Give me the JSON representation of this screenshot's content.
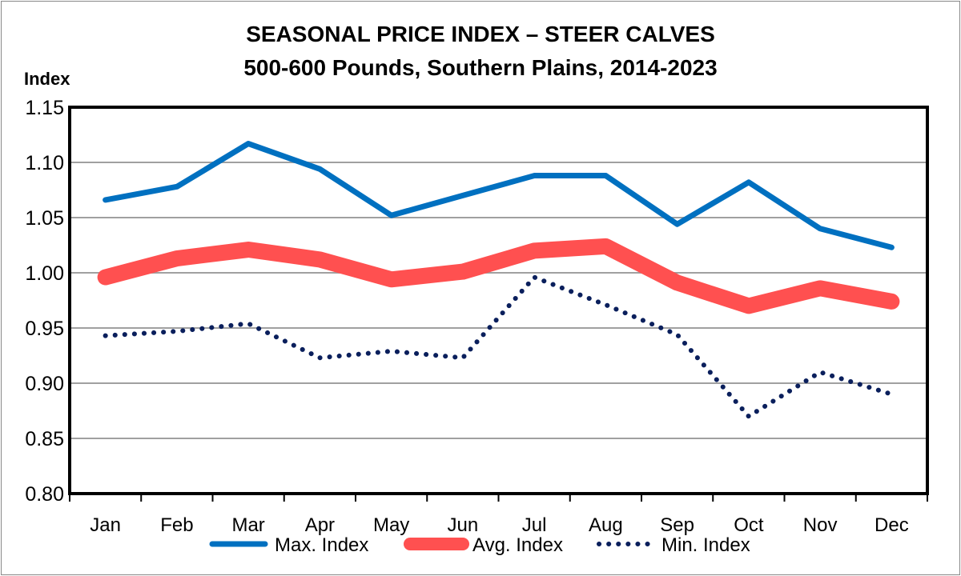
{
  "chart_data": {
    "type": "line",
    "title": "SEASONAL PRICE INDEX – STEER CALVES",
    "subtitle": "500-600 Pounds, Southern Plains, 2014-2023",
    "ylabel": "Index",
    "xlabel": "",
    "ylim": [
      0.8,
      1.15
    ],
    "yticks": [
      "0.80",
      "0.85",
      "0.90",
      "0.95",
      "1.00",
      "1.05",
      "1.10",
      "1.15"
    ],
    "grid": true,
    "legend_placement": "bottom",
    "categories": [
      "Jan",
      "Feb",
      "Mar",
      "Apr",
      "May",
      "Jun",
      "Jul",
      "Aug",
      "Sep",
      "Oct",
      "Nov",
      "Dec"
    ],
    "series": [
      {
        "name": "Max. Index",
        "color": "#0070c0",
        "style": "solid",
        "values": [
          1.066,
          1.078,
          1.117,
          1.094,
          1.052,
          1.07,
          1.088,
          1.088,
          1.044,
          1.082,
          1.04,
          1.023
        ]
      },
      {
        "name": "Avg. Index",
        "color": "#ff5050",
        "style": "thick",
        "values": [
          0.996,
          1.013,
          1.021,
          1.012,
          0.994,
          1.001,
          1.02,
          1.024,
          0.991,
          0.97,
          0.986,
          0.974
        ]
      },
      {
        "name": "Min. Index",
        "color": "#0a1f5c",
        "style": "dotted",
        "values": [
          0.943,
          0.947,
          0.954,
          0.923,
          0.929,
          0.923,
          0.996,
          0.971,
          0.944,
          0.87,
          0.91,
          0.89
        ]
      }
    ]
  }
}
